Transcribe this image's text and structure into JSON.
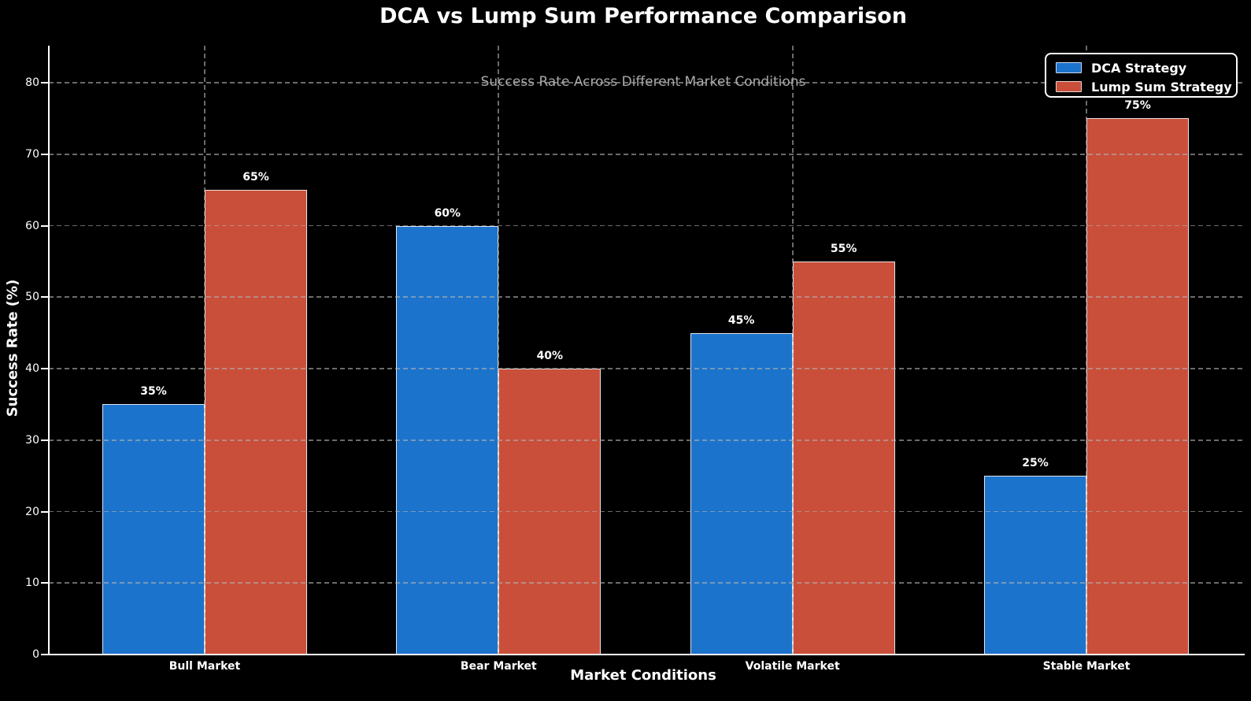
{
  "chart_data": {
    "type": "bar",
    "title": "DCA vs Lump Sum Performance Comparison",
    "subtitle": "Success Rate Across Different Market Conditions",
    "xlabel": "Market Conditions",
    "ylabel": "Success Rate (%)",
    "categories": [
      "Bull Market",
      "Bear Market",
      "Volatile Market",
      "Stable Market"
    ],
    "series": [
      {
        "name": "DCA Strategy",
        "color": "#1c73cc",
        "values": [
          35,
          60,
          45,
          25
        ],
        "labels": [
          "35%",
          "60%",
          "45%",
          "25%"
        ]
      },
      {
        "name": "Lump Sum Strategy",
        "color": "#c94f3b",
        "values": [
          65,
          40,
          55,
          75
        ],
        "labels": [
          "65%",
          "40%",
          "55%",
          "75%"
        ]
      }
    ],
    "yticks": [
      0,
      10,
      20,
      30,
      40,
      50,
      60,
      70,
      80
    ],
    "ylim": [
      0,
      85
    ],
    "grid": true,
    "legend_position": "top-right",
    "colors": {
      "background": "#000000",
      "text": "#ffffff",
      "subtitle_text": "#aaaaaa",
      "grid": "#b2b2b2",
      "bar_edge": "#f0f0f0",
      "axis": "#ffffff"
    }
  }
}
